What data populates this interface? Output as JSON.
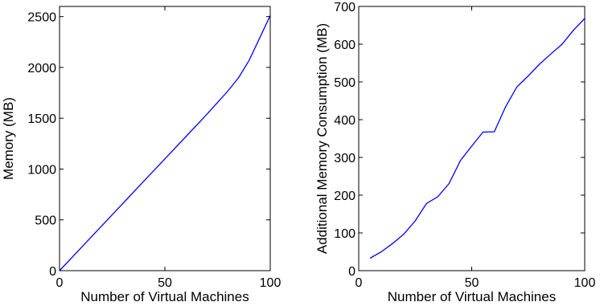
{
  "chart_data": [
    {
      "type": "line",
      "title": "",
      "xlabel": "Number of Virtual Machines",
      "ylabel": "Memory (MB)",
      "xlim": [
        0,
        100
      ],
      "ylim": [
        0,
        2600
      ],
      "xticks": [
        0,
        50,
        100
      ],
      "yticks": [
        0,
        500,
        1000,
        1500,
        2000,
        2500
      ],
      "grid": false,
      "series": [
        {
          "color": "#0000ff",
          "x": [
            0,
            10,
            20,
            30,
            40,
            50,
            60,
            70,
            80,
            85,
            90,
            95,
            100
          ],
          "y": [
            0,
            220,
            440,
            660,
            880,
            1100,
            1320,
            1540,
            1770,
            1900,
            2070,
            2290,
            2510
          ]
        }
      ]
    },
    {
      "type": "line",
      "title": "",
      "xlabel": "Number of Virtual Machines",
      "ylabel": "Additional Memory Consumption (MB)",
      "xlim": [
        0,
        100
      ],
      "ylim": [
        0,
        700
      ],
      "xticks": [
        0,
        50,
        100
      ],
      "yticks": [
        0,
        100,
        200,
        300,
        400,
        500,
        600,
        700
      ],
      "grid": false,
      "series": [
        {
          "color": "#0000ff",
          "x": [
            5,
            10,
            15,
            20,
            25,
            30,
            35,
            40,
            45,
            50,
            55,
            60,
            65,
            70,
            75,
            80,
            85,
            90,
            95,
            100
          ],
          "y": [
            33,
            50,
            72,
            97,
            132,
            178,
            196,
            231,
            292,
            330,
            367,
            368,
            434,
            487,
            516,
            547,
            574,
            600,
            637,
            668
          ]
        }
      ]
    }
  ]
}
